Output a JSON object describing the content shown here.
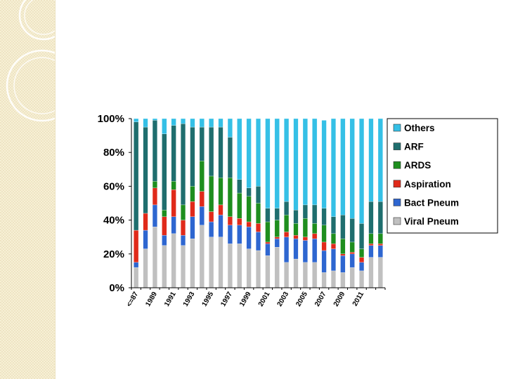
{
  "chart_data": {
    "type": "bar",
    "stacked": true,
    "percent": true,
    "ylim": [
      0,
      100
    ],
    "y_ticks": [
      "0%",
      "20%",
      "40%",
      "60%",
      "80%",
      "100%"
    ],
    "x_tick_labels": [
      "<=87",
      "1989",
      "1991",
      "1993",
      "1995",
      "1997",
      "1999",
      "2001",
      "2003",
      "2005",
      "2007",
      "2009",
      "2011"
    ],
    "legend_position": "right",
    "grid": false,
    "num_bars": 27,
    "series": [
      {
        "name": "Viral  Pneum",
        "color": "#c0c0c0",
        "values": [
          12,
          23,
          36,
          25,
          32,
          25,
          29,
          37,
          30,
          30,
          26,
          26,
          23,
          22,
          19,
          24,
          15,
          17,
          15,
          15,
          9,
          10,
          9,
          12,
          10,
          18,
          18
        ]
      },
      {
        "name": "Bact Pneum",
        "color": "#2e66d0",
        "values": [
          3,
          11,
          13,
          6,
          10,
          6,
          13,
          11,
          9,
          13,
          11,
          11,
          13,
          11,
          7,
          5,
          15,
          12,
          13,
          14,
          13,
          13,
          10,
          8,
          5,
          7,
          7
        ]
      },
      {
        "name": "Aspiration",
        "color": "#e02a1a",
        "values": [
          19,
          10,
          10,
          11,
          16,
          9,
          9,
          9,
          6,
          6,
          5,
          4,
          3,
          5,
          1,
          1,
          3,
          2,
          2,
          3,
          5,
          3,
          1,
          1,
          3,
          1,
          1
        ]
      },
      {
        "name": "ARDS",
        "color": "#1e8e1e",
        "values": [
          0,
          0,
          4,
          4,
          5,
          9,
          9,
          18,
          21,
          16,
          23,
          15,
          15,
          12,
          12,
          10,
          10,
          7,
          11,
          6,
          10,
          6,
          9,
          6,
          5,
          6,
          6
        ]
      },
      {
        "name": "ARF",
        "color": "#1f6e6e",
        "values": [
          64,
          51,
          36,
          45,
          33,
          48,
          35,
          20,
          29,
          30,
          24,
          8,
          5,
          10,
          8,
          7,
          8,
          8,
          8,
          11,
          10,
          10,
          14,
          14,
          15,
          19,
          19
        ]
      },
      {
        "name": "Others",
        "color": "#35c0e6",
        "values": [
          2,
          5,
          1,
          9,
          4,
          3,
          5,
          5,
          5,
          5,
          11,
          36,
          41,
          40,
          53,
          53,
          49,
          54,
          51,
          51,
          52,
          58,
          57,
          59,
          62,
          49,
          49
        ]
      }
    ]
  }
}
